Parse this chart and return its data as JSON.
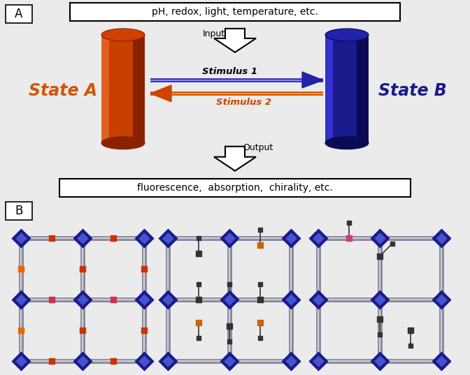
{
  "bg_color": "#ebebeb",
  "panel_a_top_text": "pH, redox, light, temperature, etc.",
  "panel_a_bottom_text": "fluorescence,  absorption,  chirality, etc.",
  "state_a_label": "State A",
  "state_b_label": "State B",
  "state_a_color": "#d45500",
  "state_b_color": "#1a1a8c",
  "stimulus1_label": "Stimulus 1",
  "stimulus2_label": "Stimulus 2",
  "input_label": "Input",
  "output_label": "Output",
  "panel_a_label": "A",
  "panel_b_label": "B",
  "node_color": "#1a1a8c",
  "node_highlight": "#4455cc",
  "bar_color_dark": "#888899",
  "bar_color_light": "#ccccdd",
  "dot_orange": "#cc5500",
  "dot_red": "#cc3355",
  "dot_dark": "#333333",
  "cyl_a_main": "#c84000",
  "cyl_a_light": "#e06020",
  "cyl_a_dark": "#882200",
  "cyl_a_top": "#d04000",
  "cyl_b_main": "#1a1a8c",
  "cyl_b_light": "#3333cc",
  "cyl_b_dark": "#0a0a55",
  "cyl_b_top": "#2222aa"
}
